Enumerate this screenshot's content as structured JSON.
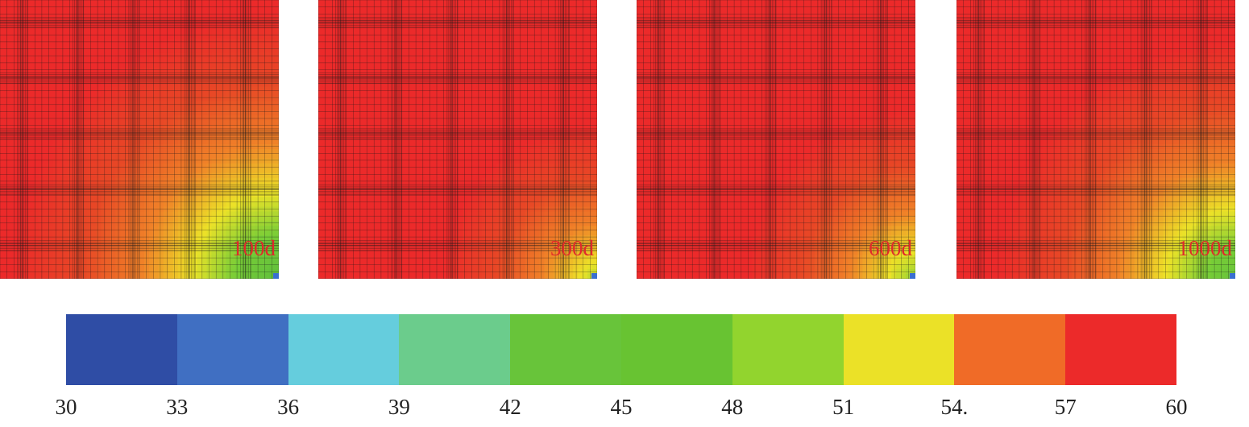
{
  "panels": [
    {
      "label": "100d",
      "hot_spread": 0.95,
      "cold_intensity": 1.0
    },
    {
      "label": "300d",
      "hot_spread": 0.55,
      "cold_intensity": 0.75
    },
    {
      "label": "600d",
      "hot_spread": 0.6,
      "cold_intensity": 0.8
    },
    {
      "label": "1000d",
      "hot_spread": 0.85,
      "cold_intensity": 0.95
    }
  ],
  "colorbar": {
    "colors": [
      "#2f4da5",
      "#406fc2",
      "#65cddd",
      "#6bcc8c",
      "#68c43a",
      "#68c332",
      "#92d42e",
      "#ebe127",
      "#f06b27",
      "#ec2a2a"
    ],
    "ticks": [
      "30",
      "33",
      "36",
      "39",
      "42",
      "45",
      "48",
      "51",
      "54.",
      "57",
      "60"
    ]
  }
}
